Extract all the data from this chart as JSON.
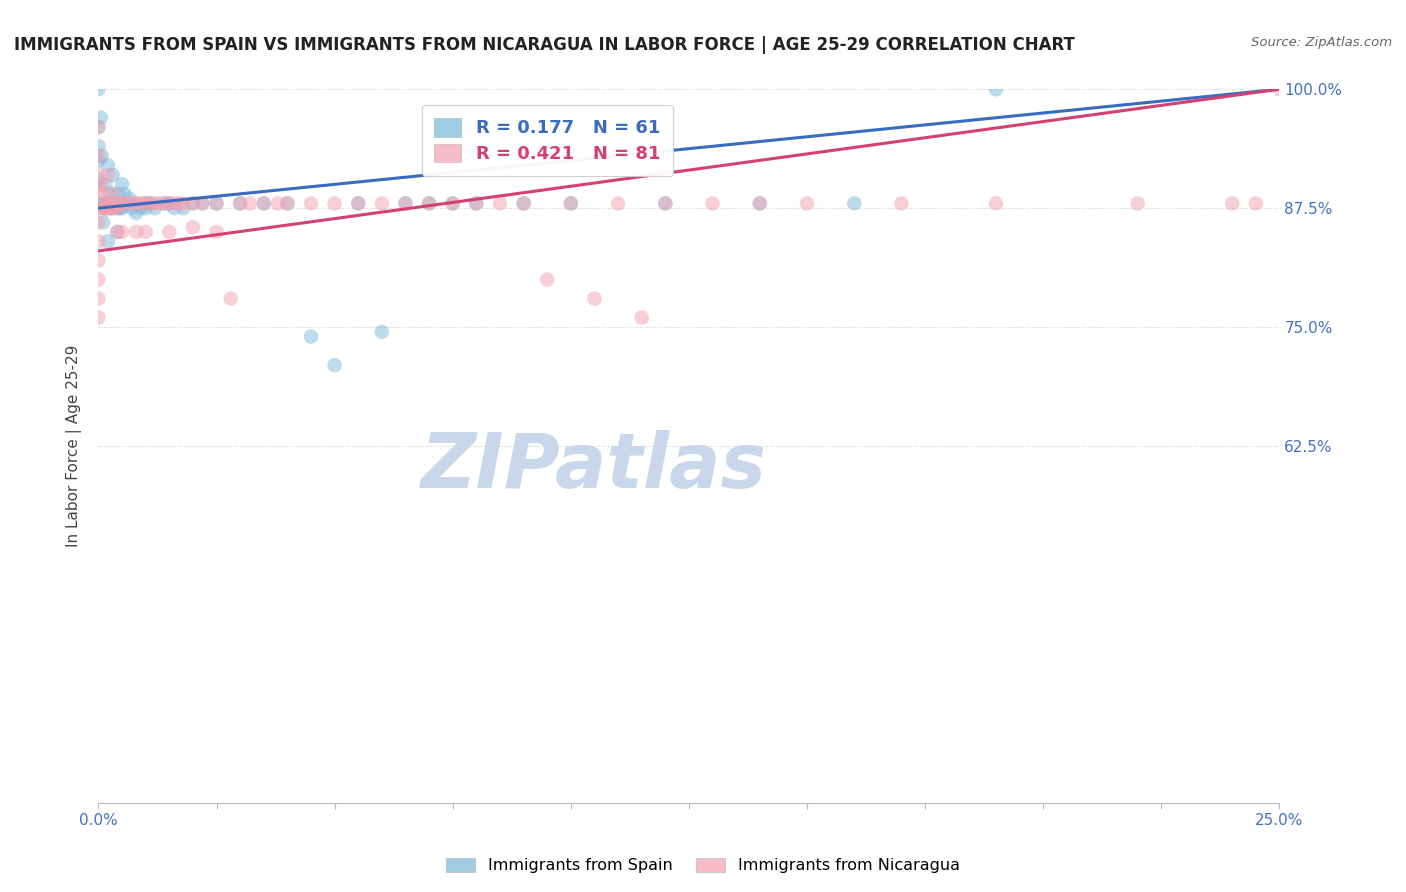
{
  "title": "IMMIGRANTS FROM SPAIN VS IMMIGRANTS FROM NICARAGUA IN LABOR FORCE | AGE 25-29 CORRELATION CHART",
  "source": "Source: ZipAtlas.com",
  "ylabel": "In Labor Force | Age 25-29",
  "xlim": [
    0.0,
    25.0
  ],
  "ylim": [
    25.0,
    100.0
  ],
  "spain_R": 0.177,
  "spain_N": 61,
  "nicaragua_R": 0.421,
  "nicaragua_N": 81,
  "spain_color": "#7ab8d9",
  "nicaragua_color": "#f4a0b0",
  "spain_line_color": "#3a6bbf",
  "nicaragua_line_color": "#d44070",
  "watermark": "ZIPatlas",
  "watermark_color": "#c8d8ea",
  "spain_x": [
    0.0,
    0.0,
    0.0,
    0.0,
    0.0,
    0.0,
    0.05,
    0.07,
    0.1,
    0.1,
    0.15,
    0.15,
    0.2,
    0.2,
    0.2,
    0.25,
    0.25,
    0.3,
    0.3,
    0.35,
    0.4,
    0.4,
    0.4,
    0.45,
    0.5,
    0.5,
    0.55,
    0.6,
    0.65,
    0.7,
    0.8,
    0.8,
    0.9,
    1.0,
    1.0,
    1.1,
    1.2,
    1.4,
    1.5,
    1.6,
    1.8,
    2.0,
    2.2,
    2.5,
    3.0,
    3.5,
    4.0,
    4.5,
    5.0,
    5.5,
    6.0,
    6.5,
    7.0,
    7.5,
    8.0,
    9.0,
    10.0,
    12.0,
    14.0,
    16.0,
    19.0
  ],
  "spain_y": [
    100.0,
    96.0,
    94.0,
    92.5,
    90.5,
    88.0,
    97.0,
    93.0,
    88.0,
    86.0,
    90.0,
    87.5,
    92.0,
    88.0,
    84.0,
    89.0,
    87.5,
    91.0,
    87.5,
    88.0,
    89.0,
    87.5,
    85.0,
    87.5,
    90.0,
    87.5,
    89.0,
    88.0,
    88.5,
    87.5,
    88.0,
    87.0,
    87.5,
    88.0,
    87.5,
    88.0,
    87.5,
    88.0,
    88.0,
    87.5,
    87.5,
    88.0,
    88.0,
    88.0,
    88.0,
    88.0,
    88.0,
    74.0,
    71.0,
    88.0,
    74.5,
    88.0,
    88.0,
    88.0,
    88.0,
    88.0,
    88.0,
    88.0,
    88.0,
    88.0,
    100.0
  ],
  "nicaragua_x": [
    0.0,
    0.0,
    0.0,
    0.0,
    0.0,
    0.0,
    0.0,
    0.0,
    0.0,
    0.0,
    0.0,
    0.05,
    0.08,
    0.1,
    0.12,
    0.15,
    0.15,
    0.2,
    0.2,
    0.25,
    0.25,
    0.3,
    0.3,
    0.35,
    0.4,
    0.4,
    0.45,
    0.5,
    0.5,
    0.6,
    0.7,
    0.8,
    0.8,
    0.9,
    1.0,
    1.0,
    1.1,
    1.2,
    1.3,
    1.4,
    1.5,
    1.5,
    1.6,
    1.7,
    1.8,
    2.0,
    2.0,
    2.2,
    2.5,
    2.5,
    2.8,
    3.0,
    3.2,
    3.5,
    3.8,
    4.0,
    4.5,
    5.0,
    5.5,
    6.0,
    6.5,
    7.0,
    7.5,
    8.0,
    8.5,
    9.0,
    10.0,
    11.0,
    12.0,
    13.0,
    14.0,
    15.0,
    17.0,
    19.0,
    22.0,
    24.0,
    24.5,
    25.0,
    9.5,
    10.5,
    11.5
  ],
  "nicaragua_y": [
    96.0,
    93.0,
    91.0,
    89.5,
    87.5,
    86.0,
    84.0,
    82.0,
    80.0,
    78.0,
    76.0,
    90.0,
    87.5,
    89.0,
    87.5,
    88.0,
    87.5,
    91.0,
    87.5,
    88.0,
    87.5,
    89.0,
    87.5,
    88.0,
    87.5,
    85.0,
    88.0,
    88.0,
    85.0,
    88.0,
    88.0,
    88.0,
    85.0,
    88.0,
    88.0,
    85.0,
    88.0,
    88.0,
    88.0,
    88.0,
    88.0,
    85.0,
    88.0,
    88.0,
    88.0,
    88.0,
    85.5,
    88.0,
    88.0,
    85.0,
    78.0,
    88.0,
    88.0,
    88.0,
    88.0,
    88.0,
    88.0,
    88.0,
    88.0,
    88.0,
    88.0,
    88.0,
    88.0,
    88.0,
    88.0,
    88.0,
    88.0,
    88.0,
    88.0,
    88.0,
    88.0,
    88.0,
    88.0,
    88.0,
    88.0,
    88.0,
    88.0,
    100.0,
    80.0,
    78.0,
    76.0
  ]
}
